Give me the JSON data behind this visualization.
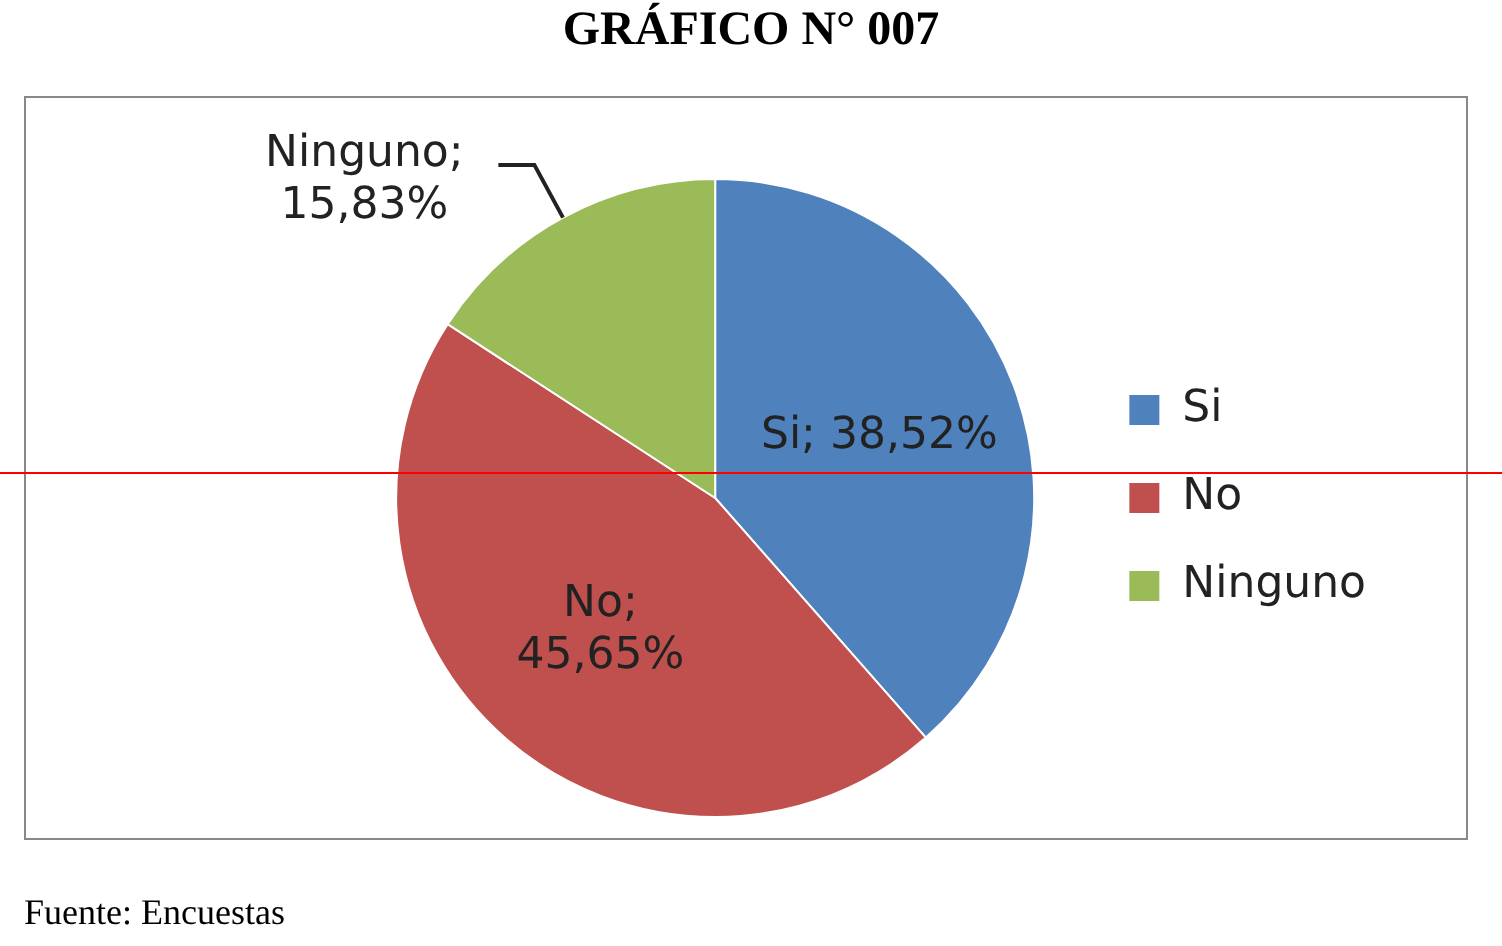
{
  "chart_data": {
    "type": "pie",
    "title": "GRÁFICO N° 007",
    "categories": [
      "Si",
      "No",
      "Ninguno"
    ],
    "values": [
      38.52,
      45.65,
      15.83
    ],
    "colors": [
      "#4f81bd",
      "#c0504d",
      "#9bbb59"
    ],
    "value_labels": [
      "Si; 38,52%",
      "No; 45,65%",
      "Ninguno; 15,83%"
    ],
    "legend": "right",
    "annotations": [
      "Fuente: Encuestas"
    ]
  }
}
